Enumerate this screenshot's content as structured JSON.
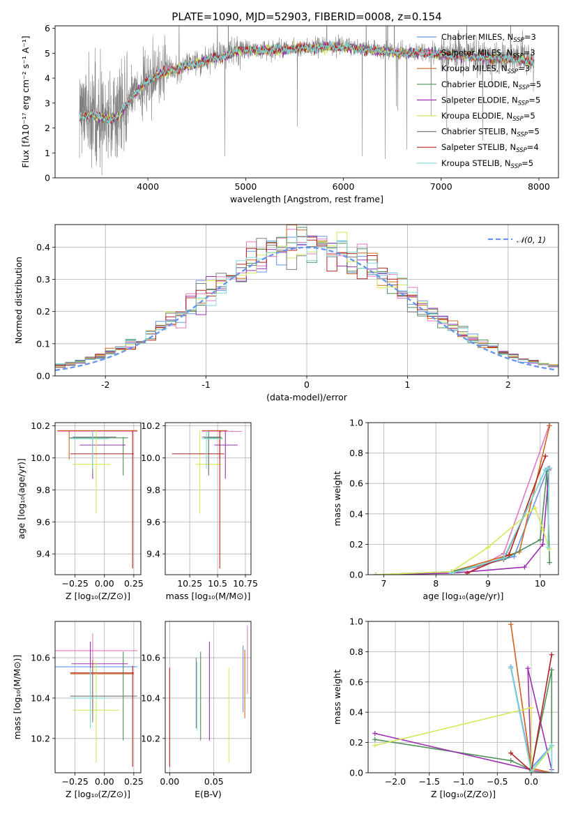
{
  "figure": {
    "title": "PLATE=1090, MJD=52903, FIBERID=0008, z=0.154"
  },
  "colors": {
    "miles_chabrier": "#6495ED",
    "miles_salpeter": "#e377c2",
    "miles_kroupa": "#d2691e",
    "elodie_chabrier": "#4e8f5a",
    "elodie_salpeter": "#9b30b0",
    "elodie_kroupa": "#d4e858",
    "stelib_chabrier": "#7f7f7f",
    "stelib_salpeter": "#b22222",
    "stelib_kroupa": "#7fd8d8"
  },
  "chart_data": [
    {
      "id": "spectrum",
      "type": "line",
      "title": "PLATE=1090, MJD=52903, FIBERID=0008, z=0.154",
      "xlabel": "wavelength [Angstrom, rest frame]",
      "ylabel": "Flux [fλ10⁻¹⁷ erg cm⁻² s⁻¹ A⁻¹]",
      "xlim": [
        3050,
        8200
      ],
      "ylim": [
        0,
        6.1
      ],
      "xticks": [
        4000,
        5000,
        6000,
        7000,
        8000
      ],
      "yticks": [
        0,
        1,
        2,
        3,
        4,
        5,
        6
      ],
      "grid": false,
      "legend_position": "right",
      "legend": [
        {
          "label": "Chabrier MILES, N",
          "sub": "SSP",
          "suffix": "=3",
          "color": "#6495ED"
        },
        {
          "label": "Salpeter MILES, N",
          "sub": "SSP",
          "suffix": "=3",
          "color": "#e377c2"
        },
        {
          "label": "Kroupa MILES, N",
          "sub": "SSP",
          "suffix": "=3",
          "color": "#d2691e"
        },
        {
          "label": "Chabrier ELODIE, N",
          "sub": "SSP",
          "suffix": "=5",
          "color": "#4e8f5a"
        },
        {
          "label": "Salpeter ELODIE, N",
          "sub": "SSP",
          "suffix": "=5",
          "color": "#9b30b0"
        },
        {
          "label": "Kroupa ELODIE, N",
          "sub": "SSP",
          "suffix": "=5",
          "color": "#d4e858"
        },
        {
          "label": "Chabrier STELIB, N",
          "sub": "SSP",
          "suffix": "=5",
          "color": "#7f7f7f"
        },
        {
          "label": "Salpeter STELIB, N",
          "sub": "SSP",
          "suffix": "=4",
          "color": "#b22222"
        },
        {
          "label": "Kroupa STELIB, N",
          "sub": "SSP",
          "suffix": "=5",
          "color": "#7fd8d8"
        }
      ],
      "continuum_x": [
        3300,
        3400,
        3500,
        3600,
        3700,
        3800,
        3900,
        4000,
        4100,
        4200,
        4300,
        4400,
        4500,
        4600,
        4700,
        4800,
        4900,
        5000,
        5100,
        5200,
        5400,
        5600,
        5800,
        6000,
        6200,
        6400,
        6600,
        6800,
        7000,
        7200,
        7400,
        7600,
        7800,
        8000
      ],
      "continuum_y": [
        2.5,
        2.6,
        2.5,
        2.4,
        2.55,
        3.05,
        3.6,
        3.95,
        4.15,
        4.3,
        4.45,
        4.55,
        4.65,
        4.75,
        4.85,
        4.95,
        5.1,
        5.2,
        5.15,
        5.15,
        5.2,
        5.25,
        5.3,
        5.3,
        5.2,
        5.1,
        5.05,
        5.05,
        5.0,
        4.95,
        4.9,
        4.85,
        4.8,
        4.6
      ],
      "observed_x_range": [
        3300,
        7950
      ]
    },
    {
      "id": "residuals",
      "type": "histogram",
      "xlabel": "(data-model)/error",
      "ylabel": "Normed distribution",
      "xlim": [
        -2.5,
        2.5
      ],
      "ylim": [
        0,
        0.47
      ],
      "xticks": [
        -2,
        -1,
        0,
        1,
        2
      ],
      "yticks": [
        0.0,
        0.1,
        0.2,
        0.3,
        0.4
      ],
      "grid": true,
      "legend_position": "top-right",
      "reference_label": "𝒩(0, 1)",
      "reference_color": "#6495ED",
      "bin_width": 0.1
    },
    {
      "id": "age_vs_Z",
      "type": "errorbar",
      "xlabel": "Z [log₁₀(Z/Z⊙)]",
      "ylabel": "age  [log₁₀(age/yr)]",
      "xlim": [
        -0.42,
        0.31
      ],
      "ylim": [
        9.27,
        10.22
      ],
      "xticks": [
        -0.25,
        0.0,
        0.25
      ],
      "xticklabels": [
        "−0.25",
        "0.00",
        "0.25"
      ],
      "yticks": [
        9.4,
        9.6,
        9.8,
        10.0,
        10.2
      ],
      "grid": true
    },
    {
      "id": "age_vs_mass",
      "type": "errorbar",
      "xlabel": "mass [log₁₀(M/M⊙)]",
      "ylabel": "",
      "xlim": [
        10.03,
        10.8
      ],
      "ylim": [
        9.27,
        10.22
      ],
      "xticks": [
        10.25,
        10.5,
        10.75
      ],
      "yticks": [
        9.4,
        9.6,
        9.8,
        10.0,
        10.2
      ],
      "grid": true
    },
    {
      "id": "weight_vs_age",
      "type": "line",
      "xlabel": "age  [log₁₀(age/yr)]",
      "ylabel": "mass weight",
      "xlim": [
        6.7,
        10.35
      ],
      "ylim": [
        0,
        1.0
      ],
      "xticks": [
        7,
        8,
        9,
        10
      ],
      "yticks": [
        0.0,
        0.2,
        0.4,
        0.6,
        0.8,
        1.0
      ],
      "grid": true
    },
    {
      "id": "mass_vs_Z",
      "type": "errorbar",
      "xlabel": "Z [log₁₀(Z/Z⊙)]",
      "ylabel": "mass [log₁₀(M/M⊙)]",
      "xlim": [
        -0.42,
        0.31
      ],
      "ylim": [
        10.03,
        10.78
      ],
      "xticks": [
        -0.25,
        0.0,
        0.25
      ],
      "xticklabels": [
        "−0.25",
        "0.00",
        "0.25"
      ],
      "yticks": [
        10.2,
        10.4,
        10.6
      ],
      "grid": true
    },
    {
      "id": "mass_vs_ebv",
      "type": "errorbar",
      "xlabel": "E(B-V)",
      "ylabel": "",
      "xlim": [
        -0.005,
        0.092
      ],
      "ylim": [
        10.03,
        10.78
      ],
      "xticks": [
        0.0,
        0.05
      ],
      "xticklabels": [
        "0.00",
        "0.05"
      ],
      "yticks": [
        10.2,
        10.4,
        10.6
      ],
      "grid": true
    },
    {
      "id": "weight_vs_Z",
      "type": "line",
      "xlabel": "Z [log₁₀(Z/Z⊙)]",
      "ylabel": "mass weight",
      "xlim": [
        -2.4,
        0.4
      ],
      "ylim": [
        0,
        1.0
      ],
      "xticks": [
        -2.0,
        -1.5,
        -1.0,
        -0.5,
        0.0
      ],
      "xticklabels": [
        "−2.0",
        "−1.5",
        "−1.0",
        "−0.5",
        "0.0"
      ],
      "yticks": [
        0.0,
        0.2,
        0.4,
        0.6,
        0.8,
        1.0
      ],
      "grid": true
    }
  ],
  "points": {
    "age_Z": [
      {
        "c": "#6495ED",
        "x": -0.3,
        "y": 10.17,
        "xe": [
          -0.4,
          0.28
        ],
        "ye": [
          10.16,
          10.17
        ]
      },
      {
        "c": "#e377c2",
        "x": -0.3,
        "y": 10.165,
        "xe": [
          -0.4,
          0.28
        ],
        "ye": [
          10.16,
          10.17
        ]
      },
      {
        "c": "#d2691e",
        "x": -0.3,
        "y": 10.17,
        "xe": [
          -0.4,
          0.28
        ],
        "ye": [
          9.99,
          10.17
        ]
      },
      {
        "c": "#4e8f5a",
        "x": 0.16,
        "y": 10.125,
        "xe": [
          -0.3,
          0.2
        ],
        "ye": [
          9.89,
          10.13
        ]
      },
      {
        "c": "#9b30b0",
        "x": -0.1,
        "y": 10.08,
        "xe": [
          -0.21,
          0.18
        ],
        "ye": [
          9.87,
          10.17
        ]
      },
      {
        "c": "#d4e858",
        "x": -0.07,
        "y": 9.96,
        "xe": [
          -0.27,
          0.05
        ],
        "ye": [
          9.65,
          10.17
        ]
      },
      {
        "c": "#7f7f7f",
        "x": -0.1,
        "y": 10.13,
        "xe": [
          -0.27,
          0.1
        ],
        "ye": [
          9.9,
          10.17
        ]
      },
      {
        "c": "#b22222",
        "x": 0.24,
        "y": 10.025,
        "xe": [
          -0.29,
          0.25
        ],
        "ye": [
          9.31,
          10.17
        ]
      },
      {
        "c": "#7fd8d8",
        "x": -0.1,
        "y": 10.12,
        "xe": [
          -0.29,
          0.04
        ],
        "ye": [
          9.93,
          10.17
        ]
      }
    ],
    "age_mass": [
      {
        "c": "#6495ED",
        "x": 10.53,
        "y": 10.17,
        "xe": [
          10.36,
          10.58
        ],
        "ye": [
          10.16,
          10.17
        ]
      },
      {
        "c": "#e377c2",
        "x": 10.63,
        "y": 10.165,
        "xe": [
          10.36,
          10.72
        ],
        "ye": [
          10.16,
          10.17
        ]
      },
      {
        "c": "#d2691e",
        "x": 10.52,
        "y": 10.17,
        "xe": [
          10.36,
          10.59
        ],
        "ye": [
          9.99,
          10.17
        ]
      },
      {
        "c": "#4e8f5a",
        "x": 10.42,
        "y": 10.125,
        "xe": [
          10.38,
          10.54
        ],
        "ye": [
          9.89,
          10.13
        ]
      },
      {
        "c": "#9b30b0",
        "x": 10.57,
        "y": 10.08,
        "xe": [
          10.47,
          10.68
        ],
        "ye": [
          9.87,
          10.17
        ]
      },
      {
        "c": "#d4e858",
        "x": 10.34,
        "y": 9.96,
        "xe": [
          10.3,
          10.53
        ],
        "ye": [
          9.65,
          10.17
        ]
      },
      {
        "c": "#7f7f7f",
        "x": 10.42,
        "y": 10.13,
        "xe": [
          10.36,
          10.53
        ],
        "ye": [
          9.9,
          10.17
        ]
      },
      {
        "c": "#b22222",
        "x": 10.52,
        "y": 10.025,
        "xe": [
          10.09,
          10.56
        ],
        "ye": [
          9.31,
          10.17
        ]
      },
      {
        "c": "#7fd8d8",
        "x": 10.4,
        "y": 10.12,
        "xe": [
          10.36,
          10.55
        ],
        "ye": [
          9.93,
          10.17
        ]
      }
    ],
    "mass_Z": [
      {
        "c": "#6495ED",
        "x": -0.1,
        "y": 10.555,
        "xe": [
          -0.42,
          0.28
        ],
        "ye": [
          10.36,
          10.58
        ]
      },
      {
        "c": "#e377c2",
        "x": -0.1,
        "y": 10.635,
        "xe": [
          -0.42,
          0.28
        ],
        "ye": [
          10.36,
          10.72
        ]
      },
      {
        "c": "#d2691e",
        "x": -0.1,
        "y": 10.52,
        "xe": [
          -0.29,
          0.25
        ],
        "ye": [
          10.3,
          10.59
        ]
      },
      {
        "c": "#4e8f5a",
        "x": 0.16,
        "y": 10.41,
        "xe": [
          -0.29,
          0.27
        ],
        "ye": [
          10.19,
          10.63
        ]
      },
      {
        "c": "#9b30b0",
        "x": -0.12,
        "y": 10.57,
        "xe": [
          -0.28,
          0.2
        ],
        "ye": [
          10.33,
          10.68
        ]
      },
      {
        "c": "#d4e858",
        "x": -0.07,
        "y": 10.34,
        "xe": [
          -0.27,
          0.12
        ],
        "ye": [
          10.08,
          10.58
        ]
      },
      {
        "c": "#7f7f7f",
        "x": -0.1,
        "y": 10.41,
        "xe": [
          -0.29,
          0.28
        ],
        "ye": [
          10.28,
          10.53
        ]
      },
      {
        "c": "#b22222",
        "x": 0.24,
        "y": 10.525,
        "xe": [
          -0.29,
          0.25
        ],
        "ye": [
          10.06,
          10.56
        ]
      },
      {
        "c": "#7fd8d8",
        "x": -0.12,
        "y": 10.4,
        "xe": [
          -0.29,
          0.04
        ],
        "ye": [
          10.25,
          10.55
        ]
      }
    ],
    "mass_ebv": [
      {
        "c": "#6495ED",
        "x": 0.083,
        "y": 10.55,
        "ye": [
          10.33,
          10.66
        ]
      },
      {
        "c": "#e377c2",
        "x": 0.088,
        "y": 10.63,
        "ye": [
          10.42,
          10.76
        ]
      },
      {
        "c": "#d2691e",
        "x": 0.085,
        "y": 10.52,
        "ye": [
          10.3,
          10.64
        ]
      },
      {
        "c": "#4e8f5a",
        "x": 0.035,
        "y": 10.41,
        "ye": [
          10.19,
          10.63
        ]
      },
      {
        "c": "#9b30b0",
        "x": 0.045,
        "y": 10.57,
        "ye": [
          10.19,
          10.68
        ]
      },
      {
        "c": "#d4e858",
        "x": 0.067,
        "y": 10.34,
        "ye": [
          10.08,
          10.55
        ]
      },
      {
        "c": "#7f7f7f",
        "x": 0.03,
        "y": 10.41,
        "ye": [
          10.25,
          10.6
        ]
      },
      {
        "c": "#b22222",
        "x": 0.0,
        "y": 10.3,
        "ye": [
          10.06,
          10.55
        ]
      },
      {
        "c": "#7fd8d8",
        "x": 0.031,
        "y": 10.4,
        "ye": [
          10.24,
          10.58
        ]
      }
    ],
    "weight_age": [
      {
        "c": "#6495ED",
        "x": [
          8.3,
          9.5,
          10.15
        ],
        "y": [
          0.01,
          0.12,
          0.7
        ]
      },
      {
        "c": "#e377c2",
        "x": [
          8.6,
          9.3,
          10.17
        ],
        "y": [
          0.01,
          0.14,
          0.98
        ]
      },
      {
        "c": "#d2691e",
        "x": [
          8.3,
          9.6,
          10.18
        ],
        "y": [
          0.02,
          0.15,
          0.98
        ]
      },
      {
        "c": "#4e8f5a",
        "x": [
          6.85,
          8.3,
          9.3,
          10.0,
          10.13,
          10.18
        ],
        "y": [
          0.0,
          0.02,
          0.1,
          0.23,
          0.68,
          0.08
        ]
      },
      {
        "c": "#9b30b0",
        "x": [
          6.85,
          8.3,
          9.7,
          10.05,
          10.17
        ],
        "y": [
          0.0,
          0.01,
          0.05,
          0.2,
          0.69
        ]
      },
      {
        "c": "#d4e858",
        "x": [
          6.85,
          8.3,
          9.0,
          9.9,
          10.05,
          10.17
        ],
        "y": [
          0.0,
          0.02,
          0.18,
          0.44,
          0.3,
          0.17
        ]
      },
      {
        "c": "#7f7f7f",
        "x": [
          8.3,
          9.3,
          10.1,
          10.18
        ],
        "y": [
          0.01,
          0.1,
          0.69,
          0.7
        ]
      },
      {
        "c": "#b22222",
        "x": [
          8.6,
          9.4,
          10.1
        ],
        "y": [
          0.01,
          0.13,
          0.78
        ]
      },
      {
        "c": "#7fd8d8",
        "x": [
          8.3,
          9.3,
          10.1,
          10.17,
          10.15
        ],
        "y": [
          0.01,
          0.11,
          0.69,
          0.7,
          0.18
        ]
      }
    ],
    "weight_Z": [
      {
        "c": "#6495ED",
        "x": [
          -0.3,
          0.0,
          0.3
        ],
        "y": [
          0.7,
          0.03,
          0.18
        ]
      },
      {
        "c": "#e377c2",
        "x": [
          -0.3,
          0.0,
          0.3
        ],
        "y": [
          0.98,
          0.02,
          0.0
        ]
      },
      {
        "c": "#d2691e",
        "x": [
          -0.3,
          0.0,
          0.3
        ],
        "y": [
          0.98,
          0.03,
          0.0
        ]
      },
      {
        "c": "#4e8f5a",
        "x": [
          -2.3,
          -0.3,
          0.0,
          0.3,
          0.3
        ],
        "y": [
          0.22,
          0.08,
          0.02,
          0.68,
          0.0
        ]
      },
      {
        "c": "#9b30b0",
        "x": [
          -2.3,
          0.0,
          -0.05,
          0.3
        ],
        "y": [
          0.26,
          0.02,
          0.69,
          0.02
        ]
      },
      {
        "c": "#d4e858",
        "x": [
          -2.3,
          0.0,
          0.0,
          0.3
        ],
        "y": [
          0.18,
          0.43,
          0.0,
          0.17
        ]
      },
      {
        "c": "#7f7f7f",
        "x": [
          -0.3,
          0.0,
          0.3
        ],
        "y": [
          0.69,
          0.01,
          0.0
        ]
      },
      {
        "c": "#b22222",
        "x": [
          -0.3,
          0.0,
          0.3
        ],
        "y": [
          0.13,
          0.01,
          0.78
        ]
      },
      {
        "c": "#7fd8d8",
        "x": [
          -0.3,
          0.0,
          0.3,
          0.3
        ],
        "y": [
          0.69,
          0.01,
          0.18,
          0.0
        ]
      }
    ]
  }
}
